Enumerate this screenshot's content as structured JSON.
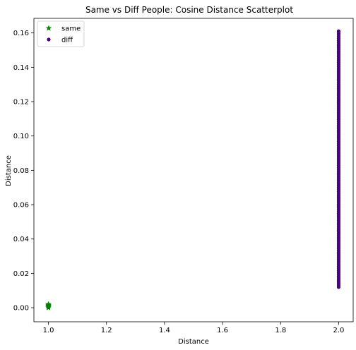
{
  "chart_data": {
    "type": "scatter",
    "title": "Same vs Diff People: Cosine Distance Scatterplot",
    "xlabel": "Distance",
    "ylabel": "Distance",
    "xlim": [
      0.95,
      2.05
    ],
    "ylim": [
      -0.0082,
      0.1685
    ],
    "xticks": [
      1.0,
      1.2,
      1.4,
      1.6,
      1.8,
      2.0
    ],
    "xtick_labels": [
      "1.0",
      "1.2",
      "1.4",
      "1.6",
      "1.8",
      "2.0"
    ],
    "yticks": [
      0.0,
      0.02,
      0.04,
      0.06,
      0.08,
      0.1,
      0.12,
      0.14,
      0.16
    ],
    "ytick_labels": [
      "0.00",
      "0.02",
      "0.04",
      "0.06",
      "0.08",
      "0.10",
      "0.12",
      "0.14",
      "0.16"
    ],
    "legend_position": "top-left",
    "grid": false,
    "series": [
      {
        "name": "same",
        "marker": "star",
        "color": "#008000",
        "x_value": 1.0,
        "y_min": 0.0,
        "y_max": 0.002
      },
      {
        "name": "diff",
        "marker": "circle",
        "color": "#4b0082",
        "x_value": 2.0,
        "y_min": 0.012,
        "y_max": 0.161
      }
    ]
  }
}
